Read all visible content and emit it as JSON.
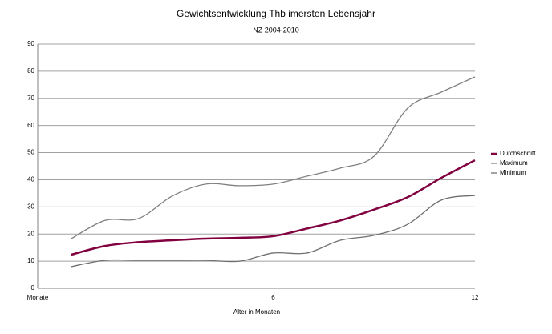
{
  "chart_data": {
    "type": "line",
    "title": "Gewichtsentwicklung Thb imersten Lebensjahr",
    "subtitle": "NZ 2004-2010",
    "x_label": "Alter in Monaten",
    "categories": [
      "Monate",
      null,
      null,
      null,
      null,
      null,
      null,
      "6",
      null,
      null,
      null,
      null,
      null,
      "12"
    ],
    "series": [
      {
        "name": "Durchschnitt",
        "color": "#800040",
        "width": 2.5,
        "values": [
          null,
          12.4,
          15.6,
          17,
          17.7,
          18.3,
          18.6,
          19.2,
          22,
          25,
          29,
          33.6,
          40.7,
          47.2
        ]
      },
      {
        "name": "Maximum",
        "color": "#808080",
        "width": 1.3,
        "values": [
          null,
          18.3,
          25,
          25.7,
          34,
          38.4,
          37.8,
          38.4,
          41.3,
          44.3,
          48.7,
          66.4,
          72.3,
          77.9
        ]
      },
      {
        "name": "Minimum",
        "color": "#707070",
        "width": 1.3,
        "values": [
          null,
          8,
          10.3,
          10.3,
          10.3,
          10.3,
          10,
          13,
          13,
          17.7,
          19.5,
          23.6,
          32.5,
          34.2
        ]
      }
    ],
    "ylim": [
      0,
      90
    ],
    "yticks": [
      0,
      10,
      20,
      30,
      40,
      50,
      60,
      70,
      80,
      90
    ],
    "grid": true,
    "legend": "right"
  }
}
